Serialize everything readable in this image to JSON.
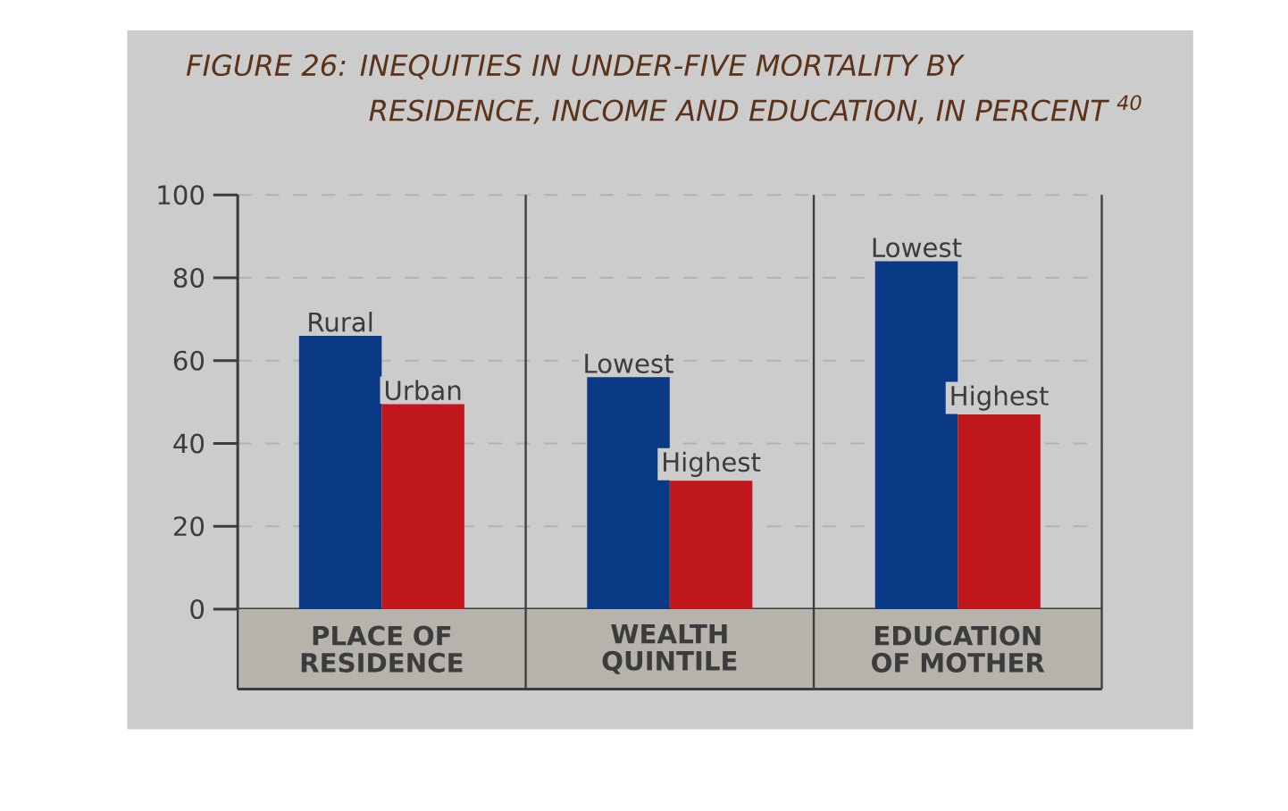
{
  "chart_data": {
    "type": "bar",
    "title": "FIGURE 26: INEQUITIES IN UNDER-FIVE MORTALITY BY RESIDENCE, INCOME AND EDUCATION, IN PERCENT $^{40}$",
    "categories": [
      "PLACE OF RESIDENCE",
      "WEALTH QUINTILE",
      "EDUCATION OF MOTHER"
    ],
    "series": [
      {
        "color": "#0a3a85",
        "values": [
          66,
          56,
          84
        ]
      },
      {
        "color": "#c0171c",
        "values": [
          49.5,
          31,
          47
        ]
      }
    ],
    "ylim": [
      0,
      100
    ],
    "yticks": [
      0,
      20,
      40,
      60,
      80,
      100
    ],
    "grid": "y",
    "annotations": [
      {
        "text": "Rural",
        "x": "PLACE OF RESIDENCE",
        "y": 66
      },
      {
        "text": "Urban",
        "x": "PLACE OF RESIDENCE",
        "y": 49.5
      },
      {
        "text": "Lowest",
        "x": "WEALTH QUINTILE",
        "y": 56
      },
      {
        "text": "Highest",
        "x": "WEALTH QUINTILE",
        "y": 31
      },
      {
        "text": "Lowest",
        "x": "EDUCATION OF MOTHER",
        "y": 84
      },
      {
        "text": "Highest",
        "x": "EDUCATION OF MOTHER",
        "y": 47
      }
    ]
  }
}
